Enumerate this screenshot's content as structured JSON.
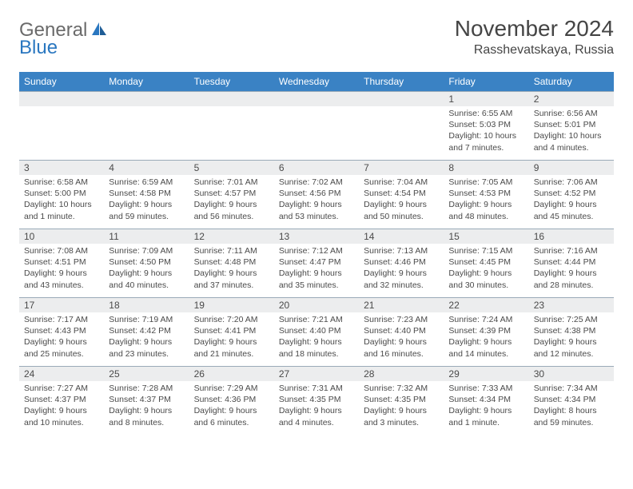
{
  "logo": {
    "general": "General",
    "blue": "Blue"
  },
  "title": "November 2024",
  "location": "Rasshevatskaya, Russia",
  "colors": {
    "header_bg": "#3a82c4",
    "header_text": "#ffffff",
    "daybar_bg": "#ecedee",
    "border": "#9aaab8",
    "text": "#4a4a4a",
    "logo_gray": "#6a6a6a",
    "logo_blue": "#2a77c0"
  },
  "weekdays": [
    "Sunday",
    "Monday",
    "Tuesday",
    "Wednesday",
    "Thursday",
    "Friday",
    "Saturday"
  ],
  "weeks": [
    [
      null,
      null,
      null,
      null,
      null,
      {
        "n": "1",
        "sr": "Sunrise: 6:55 AM",
        "ss": "Sunset: 5:03 PM",
        "dl": "Daylight: 10 hours and 7 minutes."
      },
      {
        "n": "2",
        "sr": "Sunrise: 6:56 AM",
        "ss": "Sunset: 5:01 PM",
        "dl": "Daylight: 10 hours and 4 minutes."
      }
    ],
    [
      {
        "n": "3",
        "sr": "Sunrise: 6:58 AM",
        "ss": "Sunset: 5:00 PM",
        "dl": "Daylight: 10 hours and 1 minute."
      },
      {
        "n": "4",
        "sr": "Sunrise: 6:59 AM",
        "ss": "Sunset: 4:58 PM",
        "dl": "Daylight: 9 hours and 59 minutes."
      },
      {
        "n": "5",
        "sr": "Sunrise: 7:01 AM",
        "ss": "Sunset: 4:57 PM",
        "dl": "Daylight: 9 hours and 56 minutes."
      },
      {
        "n": "6",
        "sr": "Sunrise: 7:02 AM",
        "ss": "Sunset: 4:56 PM",
        "dl": "Daylight: 9 hours and 53 minutes."
      },
      {
        "n": "7",
        "sr": "Sunrise: 7:04 AM",
        "ss": "Sunset: 4:54 PM",
        "dl": "Daylight: 9 hours and 50 minutes."
      },
      {
        "n": "8",
        "sr": "Sunrise: 7:05 AM",
        "ss": "Sunset: 4:53 PM",
        "dl": "Daylight: 9 hours and 48 minutes."
      },
      {
        "n": "9",
        "sr": "Sunrise: 7:06 AM",
        "ss": "Sunset: 4:52 PM",
        "dl": "Daylight: 9 hours and 45 minutes."
      }
    ],
    [
      {
        "n": "10",
        "sr": "Sunrise: 7:08 AM",
        "ss": "Sunset: 4:51 PM",
        "dl": "Daylight: 9 hours and 43 minutes."
      },
      {
        "n": "11",
        "sr": "Sunrise: 7:09 AM",
        "ss": "Sunset: 4:50 PM",
        "dl": "Daylight: 9 hours and 40 minutes."
      },
      {
        "n": "12",
        "sr": "Sunrise: 7:11 AM",
        "ss": "Sunset: 4:48 PM",
        "dl": "Daylight: 9 hours and 37 minutes."
      },
      {
        "n": "13",
        "sr": "Sunrise: 7:12 AM",
        "ss": "Sunset: 4:47 PM",
        "dl": "Daylight: 9 hours and 35 minutes."
      },
      {
        "n": "14",
        "sr": "Sunrise: 7:13 AM",
        "ss": "Sunset: 4:46 PM",
        "dl": "Daylight: 9 hours and 32 minutes."
      },
      {
        "n": "15",
        "sr": "Sunrise: 7:15 AM",
        "ss": "Sunset: 4:45 PM",
        "dl": "Daylight: 9 hours and 30 minutes."
      },
      {
        "n": "16",
        "sr": "Sunrise: 7:16 AM",
        "ss": "Sunset: 4:44 PM",
        "dl": "Daylight: 9 hours and 28 minutes."
      }
    ],
    [
      {
        "n": "17",
        "sr": "Sunrise: 7:17 AM",
        "ss": "Sunset: 4:43 PM",
        "dl": "Daylight: 9 hours and 25 minutes."
      },
      {
        "n": "18",
        "sr": "Sunrise: 7:19 AM",
        "ss": "Sunset: 4:42 PM",
        "dl": "Daylight: 9 hours and 23 minutes."
      },
      {
        "n": "19",
        "sr": "Sunrise: 7:20 AM",
        "ss": "Sunset: 4:41 PM",
        "dl": "Daylight: 9 hours and 21 minutes."
      },
      {
        "n": "20",
        "sr": "Sunrise: 7:21 AM",
        "ss": "Sunset: 4:40 PM",
        "dl": "Daylight: 9 hours and 18 minutes."
      },
      {
        "n": "21",
        "sr": "Sunrise: 7:23 AM",
        "ss": "Sunset: 4:40 PM",
        "dl": "Daylight: 9 hours and 16 minutes."
      },
      {
        "n": "22",
        "sr": "Sunrise: 7:24 AM",
        "ss": "Sunset: 4:39 PM",
        "dl": "Daylight: 9 hours and 14 minutes."
      },
      {
        "n": "23",
        "sr": "Sunrise: 7:25 AM",
        "ss": "Sunset: 4:38 PM",
        "dl": "Daylight: 9 hours and 12 minutes."
      }
    ],
    [
      {
        "n": "24",
        "sr": "Sunrise: 7:27 AM",
        "ss": "Sunset: 4:37 PM",
        "dl": "Daylight: 9 hours and 10 minutes."
      },
      {
        "n": "25",
        "sr": "Sunrise: 7:28 AM",
        "ss": "Sunset: 4:37 PM",
        "dl": "Daylight: 9 hours and 8 minutes."
      },
      {
        "n": "26",
        "sr": "Sunrise: 7:29 AM",
        "ss": "Sunset: 4:36 PM",
        "dl": "Daylight: 9 hours and 6 minutes."
      },
      {
        "n": "27",
        "sr": "Sunrise: 7:31 AM",
        "ss": "Sunset: 4:35 PM",
        "dl": "Daylight: 9 hours and 4 minutes."
      },
      {
        "n": "28",
        "sr": "Sunrise: 7:32 AM",
        "ss": "Sunset: 4:35 PM",
        "dl": "Daylight: 9 hours and 3 minutes."
      },
      {
        "n": "29",
        "sr": "Sunrise: 7:33 AM",
        "ss": "Sunset: 4:34 PM",
        "dl": "Daylight: 9 hours and 1 minute."
      },
      {
        "n": "30",
        "sr": "Sunrise: 7:34 AM",
        "ss": "Sunset: 4:34 PM",
        "dl": "Daylight: 8 hours and 59 minutes."
      }
    ]
  ]
}
